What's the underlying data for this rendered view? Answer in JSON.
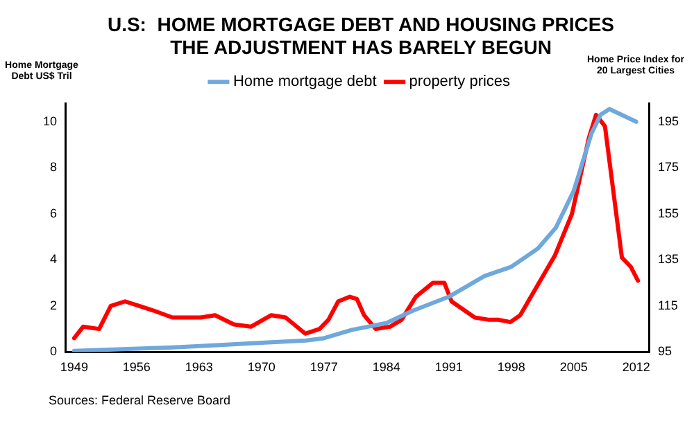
{
  "chart_data": {
    "type": "line",
    "title": "U.S:  HOME MORTGAGE DEBT AND HOUSING PRICES\nTHE ADJUSTMENT HAS BARELY BEGUN",
    "ylabel": "Home Mortgage Debt US$ Tril",
    "y2label": "Home Price Index for 20 Largest Cities",
    "xlim": [
      1948,
      2013.5
    ],
    "xticks": [
      1949,
      1956,
      1963,
      1970,
      1977,
      1984,
      1991,
      1998,
      2005,
      2012
    ],
    "ylim": [
      0,
      10.8
    ],
    "yticks": [
      0,
      2,
      4,
      6,
      8,
      10
    ],
    "y2lim": [
      95,
      203
    ],
    "y2ticks": [
      95,
      115,
      135,
      155,
      175,
      195
    ],
    "grid": false,
    "legend": "top",
    "marker": "none",
    "line_style": "solid",
    "series": [
      {
        "name": "Home mortgage debt",
        "color": "#6fa8dc",
        "x": [
          1949,
          1955,
          1960,
          1965,
          1970,
          1975,
          1977,
          1980,
          1984,
          1987,
          1991,
          1995,
          1998,
          2001,
          2003,
          2005,
          2007,
          2008,
          2009,
          2012
        ],
        "values": [
          0.05,
          0.13,
          0.2,
          0.3,
          0.4,
          0.5,
          0.6,
          0.95,
          1.26,
          1.8,
          2.4,
          3.3,
          3.7,
          4.5,
          5.4,
          7.0,
          9.5,
          10.3,
          10.55,
          10.0
        ]
      },
      {
        "name": "property prices",
        "color": "#ff0000",
        "axis": "y2",
        "x": [
          1949,
          1950,
          1951.8,
          1953.1,
          1954.7,
          1956.3,
          1957.9,
          1960,
          1963.2,
          1964.8,
          1966.9,
          1968.8,
          1971.1,
          1972.7,
          1974.9,
          1976.5,
          1977.5,
          1978.6,
          1979.9,
          1980.7,
          1981.5,
          1982.8,
          1984.4,
          1985.7,
          1987.3,
          1989.2,
          1990.5,
          1991.3,
          1993.9,
          1995.5,
          1996.6,
          1997.9,
          1999,
          2000.8,
          2002.9,
          2004.8,
          2006.7,
          2007.5,
          2008.5,
          2010.4,
          2011.4,
          2012.2
        ],
        "values": [
          101,
          106,
          105,
          115,
          117,
          115,
          113,
          110,
          110,
          111,
          107,
          106,
          111,
          110,
          103,
          105,
          109,
          117,
          119,
          118,
          111,
          105,
          106,
          109,
          119,
          125,
          125,
          117,
          110,
          109,
          109,
          108,
          111,
          123,
          137,
          155,
          188,
          198,
          193,
          136,
          132,
          126
        ]
      }
    ],
    "annotations": [
      "Sources: Federal Reserve Board"
    ]
  }
}
